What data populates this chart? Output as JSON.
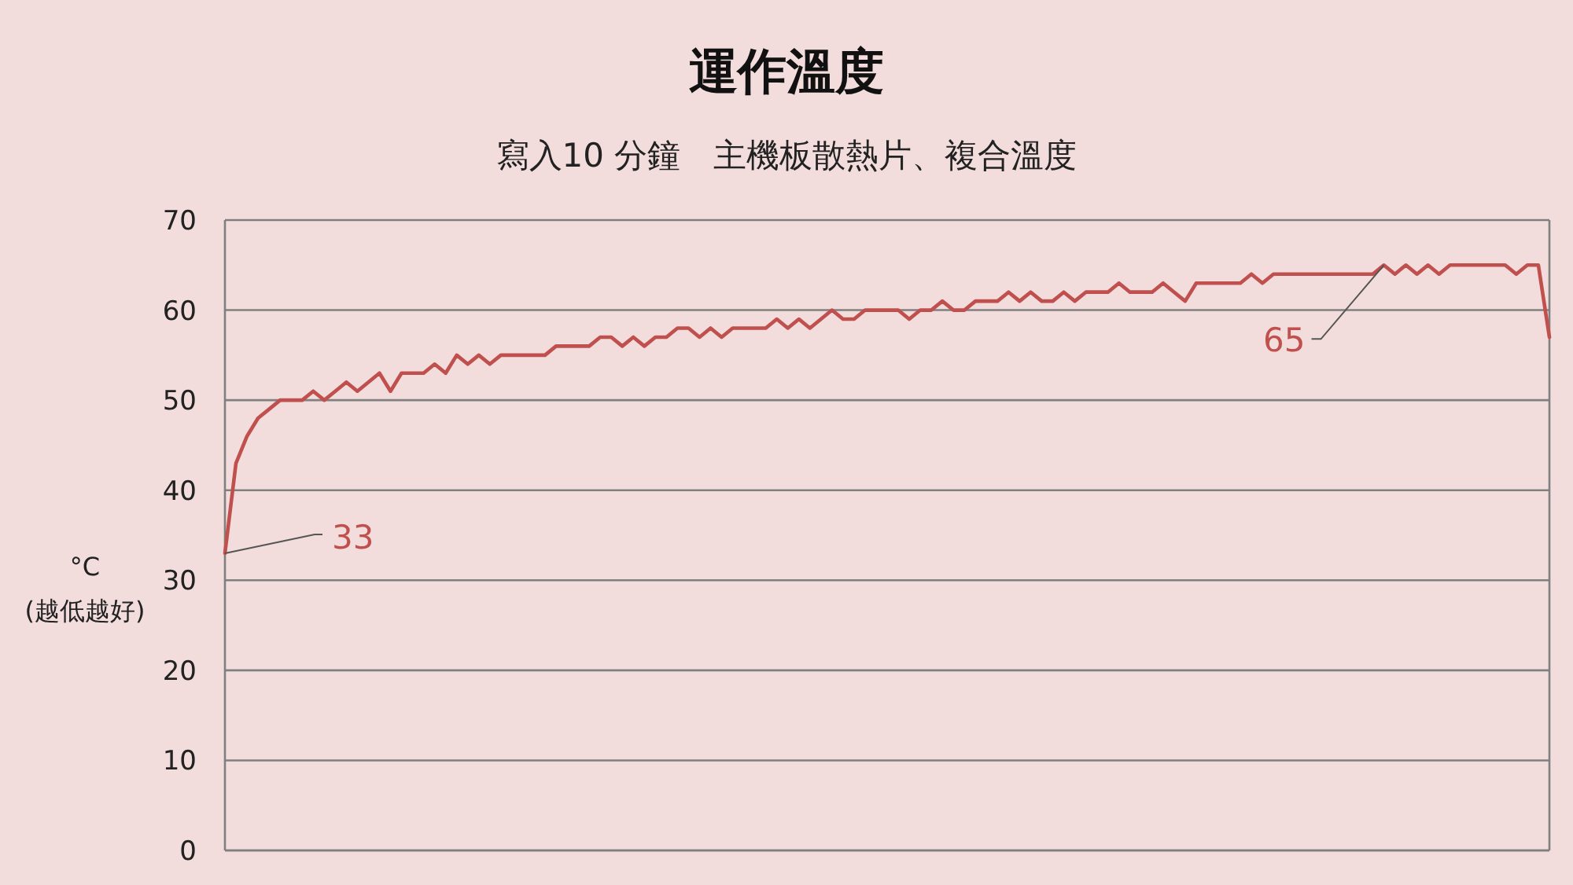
{
  "chart_data": {
    "type": "line",
    "title": "運作溫度",
    "subtitle": "寫入10 分鐘　主機板散熱片、複合溫度",
    "ylabel": "°C\n(越低越好)",
    "categories": [
      null,
      null,
      null,
      null,
      null,
      null,
      null,
      null,
      null,
      null,
      null,
      null,
      null,
      null,
      null,
      null,
      null,
      null,
      null,
      null,
      null,
      null,
      null,
      null,
      null,
      null,
      null,
      null,
      null,
      null,
      null,
      null,
      null,
      null,
      null,
      null,
      null,
      null,
      null,
      null,
      null,
      null,
      null,
      null,
      null,
      null,
      null,
      null,
      null,
      null,
      null,
      null,
      null,
      null,
      null,
      null,
      null,
      null,
      null,
      null,
      null,
      null,
      null,
      null,
      null,
      null,
      null,
      null,
      null,
      null,
      null,
      null,
      null,
      null,
      null,
      null,
      null,
      null,
      null,
      null,
      null,
      null,
      null,
      null,
      null,
      null,
      null,
      null,
      null,
      null,
      null,
      null,
      null,
      null,
      null,
      null,
      null,
      null,
      null,
      null,
      null,
      null,
      null,
      null,
      null,
      null,
      null,
      null,
      null,
      null,
      null,
      null,
      null,
      null,
      null,
      null,
      null,
      null,
      null,
      null,
      null
    ],
    "series": [
      {
        "color": "#c0504d",
        "values": [
          33,
          43,
          46,
          48,
          49,
          50,
          50,
          50,
          51,
          50,
          51,
          52,
          51,
          52,
          53,
          51,
          53,
          53,
          53,
          54,
          53,
          55,
          54,
          55,
          54,
          55,
          55,
          55,
          55,
          55,
          56,
          56,
          56,
          56,
          57,
          57,
          56,
          57,
          56,
          57,
          57,
          58,
          58,
          57,
          58,
          57,
          58,
          58,
          58,
          58,
          59,
          58,
          59,
          58,
          59,
          60,
          59,
          59,
          60,
          60,
          60,
          60,
          59,
          60,
          60,
          61,
          60,
          60,
          61,
          61,
          61,
          62,
          61,
          62,
          61,
          61,
          62,
          61,
          62,
          62,
          62,
          63,
          62,
          62,
          62,
          63,
          62,
          61,
          63,
          63,
          63,
          63,
          63,
          64,
          63,
          64,
          64,
          64,
          64,
          64,
          64,
          64,
          64,
          64,
          64,
          65,
          64,
          65,
          64,
          65,
          64,
          65,
          65,
          65,
          65,
          65,
          65,
          64,
          65,
          65,
          57
        ]
      }
    ],
    "ylim": [
      0,
      70
    ],
    "yticks": [
      0,
      10,
      20,
      30,
      40,
      50,
      60,
      70
    ],
    "grid": "y",
    "line_style": "solid",
    "annotations": [
      "33",
      "65"
    ]
  }
}
